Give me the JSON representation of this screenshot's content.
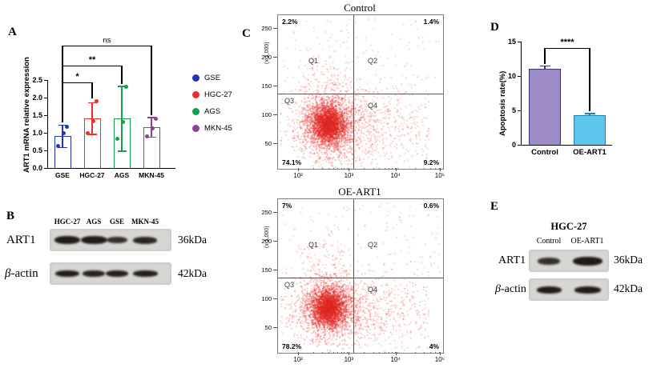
{
  "panels": {
    "A": {
      "label": "A",
      "legend": [
        {
          "label": "GSE",
          "color": "#2433b5"
        },
        {
          "label": "HGC-27",
          "color": "#e8312d"
        },
        {
          "label": "AGS",
          "color": "#0ea04e"
        },
        {
          "label": "MKN-45",
          "color": "#8e3f97"
        }
      ]
    },
    "B": {
      "label": "B",
      "lanes": [
        "HGC-27",
        "AGS",
        "GSE",
        "MKN-45"
      ],
      "rows": [
        {
          "protein": "ART1",
          "size": "36kDa"
        },
        {
          "protein": "β-actin",
          "size": "42kDa"
        }
      ]
    },
    "C": {
      "label": "C"
    },
    "D": {
      "label": "D"
    },
    "E": {
      "label": "E",
      "title": "HGC-27",
      "lanes": [
        "Control",
        "OE-ART1"
      ],
      "rows": [
        {
          "protein": "ART1",
          "size": "36kDa"
        },
        {
          "protein": "β-actin",
          "size": "42kDa"
        }
      ]
    }
  },
  "chart_data": [
    {
      "id": "panel-a-bar",
      "type": "bar",
      "title": "",
      "ylabel": "ART1 mRNA relative expression",
      "categories": [
        "GSE",
        "HGC-27",
        "AGS",
        "MKN-45"
      ],
      "values": [
        0.9,
        1.4,
        1.4,
        1.15
      ],
      "errors": [
        0.32,
        0.45,
        0.92,
        0.28
      ],
      "points": [
        [
          0.62,
          0.98,
          1.18
        ],
        [
          1.0,
          1.32,
          1.9
        ],
        [
          0.82,
          1.3,
          2.3
        ],
        [
          0.9,
          1.12,
          1.4
        ]
      ],
      "colors": [
        "#2433b5",
        "#e8312d",
        "#0ea04e",
        "#8e3f97"
      ],
      "ylim": [
        0,
        2.5
      ],
      "yticks": [
        "0.0",
        "0.5",
        "1.0",
        "1.5",
        "2.0",
        "2.5"
      ],
      "significance": [
        {
          "from": "GSE",
          "to": "HGC-27",
          "label": "*"
        },
        {
          "from": "GSE",
          "to": "AGS",
          "label": "**"
        },
        {
          "from": "GSE",
          "to": "MKN-45",
          "label": "ns"
        }
      ],
      "legend": [
        "GSE",
        "HGC-27",
        "AGS",
        "MKN-45"
      ],
      "legend_position": "right"
    },
    {
      "id": "panel-c-flow-control",
      "type": "scatter",
      "title": "Control",
      "ylabel": "(x 1,000)",
      "yticks": [
        "50",
        "100",
        "150",
        "200",
        "250"
      ],
      "xticks": [
        "10²",
        "10³",
        "10⁴",
        "10⁵"
      ],
      "quadrant_labels": [
        "Q1",
        "Q2",
        "Q3",
        "Q4"
      ],
      "quadrant_values": {
        "Q1": "2.2%",
        "Q2": "1.4%",
        "Q3": "74.1%",
        "Q4": "9.2%"
      },
      "dot_color": "#e0251f"
    },
    {
      "id": "panel-c-flow-oe-art1",
      "type": "scatter",
      "title": "OE-ART1",
      "ylabel": "(x 1,000)",
      "yticks": [
        "50",
        "100",
        "150",
        "200",
        "250"
      ],
      "xticks": [
        "10²",
        "10³",
        "10⁴",
        "10⁵"
      ],
      "quadrant_labels": [
        "Q1",
        "Q2",
        "Q3",
        "Q4"
      ],
      "quadrant_values": {
        "Q1": "7%",
        "Q2": "0.6%",
        "Q3": "78.2%",
        "Q4": "4%"
      },
      "dot_color": "#e0251f"
    },
    {
      "id": "panel-d-bar",
      "type": "bar",
      "title": "",
      "ylabel": "Apoptosis rate(%)",
      "categories": [
        "Control",
        "OE-ART1"
      ],
      "values": [
        11.1,
        4.3
      ],
      "errors": [
        0.35,
        0.25
      ],
      "colors": [
        "#9d8bc7",
        "#5ec6ea"
      ],
      "edge_colors": [
        "#3c3677",
        "#1f7fae"
      ],
      "ylim": [
        0,
        15
      ],
      "yticks": [
        "0",
        "5",
        "10",
        "15"
      ],
      "significance": [
        {
          "from": "Control",
          "to": "OE-ART1",
          "label": "****"
        }
      ]
    }
  ]
}
